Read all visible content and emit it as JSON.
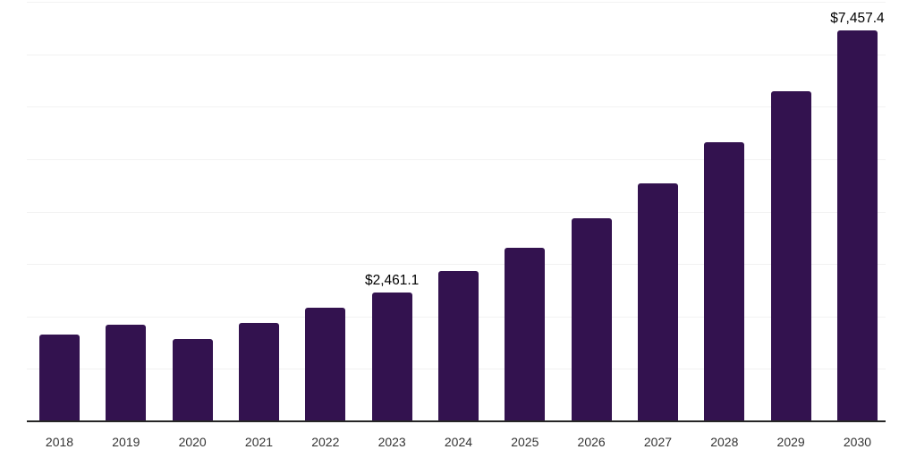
{
  "chart_data": {
    "type": "bar",
    "title": "",
    "xlabel": "",
    "ylabel": "",
    "categories": [
      "2018",
      "2019",
      "2020",
      "2021",
      "2022",
      "2023",
      "2024",
      "2025",
      "2026",
      "2027",
      "2028",
      "2029",
      "2030"
    ],
    "values": [
      1650,
      1840,
      1570,
      1880,
      2170,
      2461.1,
      2860,
      3310,
      3870,
      4540,
      5320,
      6290,
      7457.4
    ],
    "value_labels": [
      "",
      "",
      "",
      "",
      "",
      "$2,461.1",
      "",
      "",
      "",
      "",
      "",
      "",
      ""
    ],
    "ylim": [
      0,
      8000
    ],
    "gridline_step": 1000,
    "grid": "horizontal",
    "legend": "none",
    "annotations": [
      {
        "category": "2023",
        "text": "$2,461.1"
      },
      {
        "category": "2030",
        "text": "$7,457.4"
      }
    ],
    "colors": {
      "bar": "#33124f",
      "gridline": "#f2f2f2",
      "axis_line": "#262626",
      "tick_label": "#333333",
      "data_label": "#000000",
      "background": "#ffffff"
    }
  }
}
